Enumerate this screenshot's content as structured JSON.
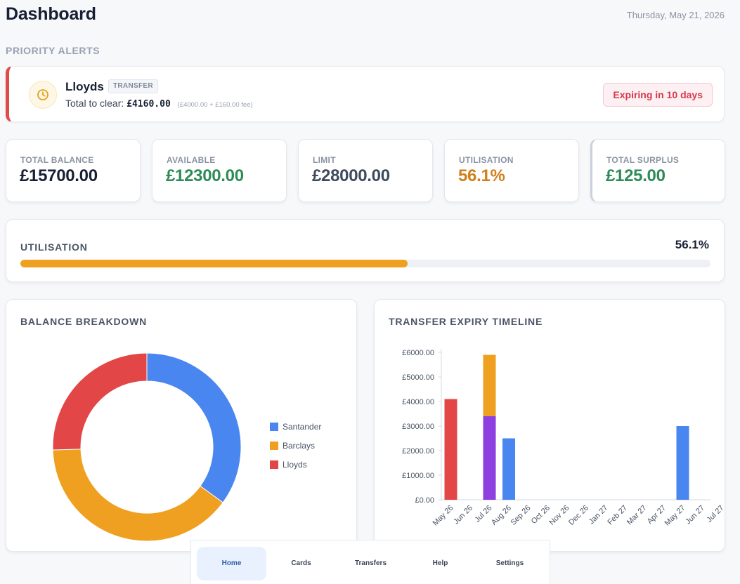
{
  "header": {
    "title": "Dashboard",
    "date": "Thursday, May 21, 2026"
  },
  "alerts": {
    "section_label": "PRIORITY ALERTS",
    "items": [
      {
        "name": "Lloyds",
        "tag": "TRANSFER",
        "total_label": "Total to clear:",
        "total_amount": "£4160.00",
        "breakdown": "(£4000.00 + £160.00 fee)",
        "badge": "Expiring in 10 days",
        "icon": "clock-icon"
      }
    ]
  },
  "stats": [
    {
      "label": "TOTAL BALANCE",
      "value": "£15700.00",
      "color": "#172033"
    },
    {
      "label": "AVAILABLE",
      "value": "£12300.00",
      "color": "#2e8b57"
    },
    {
      "label": "LIMIT",
      "value": "£28000.00",
      "color": "#3f4a5c"
    },
    {
      "label": "UTILISATION",
      "value": "56.1%",
      "color": "#d07f1a"
    },
    {
      "label": "TOTAL SURPLUS",
      "value": "£125.00",
      "color": "#2e8b57"
    }
  ],
  "utilisation": {
    "title": "UTILISATION",
    "value_text": "56.1%",
    "fraction": 0.561
  },
  "balance_breakdown": {
    "title": "BALANCE BREAKDOWN"
  },
  "expiry_timeline": {
    "title": "TRANSFER EXPIRY TIMELINE"
  },
  "chart_data": [
    {
      "type": "pie",
      "title": "BALANCE BREAKDOWN",
      "labels": [
        "Santander",
        "Barclays",
        "Lloyds"
      ],
      "values": [
        5500,
        6200,
        4000
      ],
      "colors": [
        "#4a86f0",
        "#f0a020",
        "#e24646"
      ],
      "legend": "right"
    },
    {
      "type": "bar",
      "title": "TRANSFER EXPIRY TIMELINE",
      "categories": [
        "May 26",
        "Jun 26",
        "Jul 26",
        "Aug 26",
        "Sep 26",
        "Oct 26",
        "Nov 26",
        "Dec 26",
        "Jan 27",
        "Feb 27",
        "Mar 27",
        "Apr 27",
        "May 27",
        "Jun 27",
        "Jul 27"
      ],
      "series": [
        {
          "values": [
            4100,
            0,
            0,
            0,
            0,
            0,
            0,
            0,
            0,
            0,
            0,
            0,
            0,
            0,
            0
          ],
          "color": "#e24646"
        },
        {
          "values": [
            0,
            0,
            3400,
            0,
            0,
            0,
            0,
            0,
            0,
            0,
            0,
            0,
            0,
            0,
            0
          ],
          "color": "#8e3fe0"
        },
        {
          "values": [
            0,
            0,
            2500,
            0,
            0,
            0,
            0,
            0,
            0,
            0,
            0,
            0,
            0,
            0,
            0
          ],
          "color": "#f0a020"
        },
        {
          "values": [
            0,
            0,
            0,
            2500,
            0,
            0,
            0,
            0,
            0,
            0,
            0,
            0,
            3000,
            0,
            0
          ],
          "color": "#4a86f0"
        }
      ],
      "stacked": true,
      "ylim": [
        0,
        6000
      ],
      "yticks": [
        "£0.00",
        "£1000.00",
        "£2000.00",
        "£3000.00",
        "£4000.00",
        "£5000.00",
        "£6000.00"
      ],
      "grid": false
    }
  ],
  "nav": {
    "items": [
      {
        "label": "Home",
        "active": true
      },
      {
        "label": "Cards",
        "active": false
      },
      {
        "label": "Transfers",
        "active": false
      },
      {
        "label": "Help",
        "active": false
      },
      {
        "label": "Settings",
        "active": false
      }
    ]
  }
}
